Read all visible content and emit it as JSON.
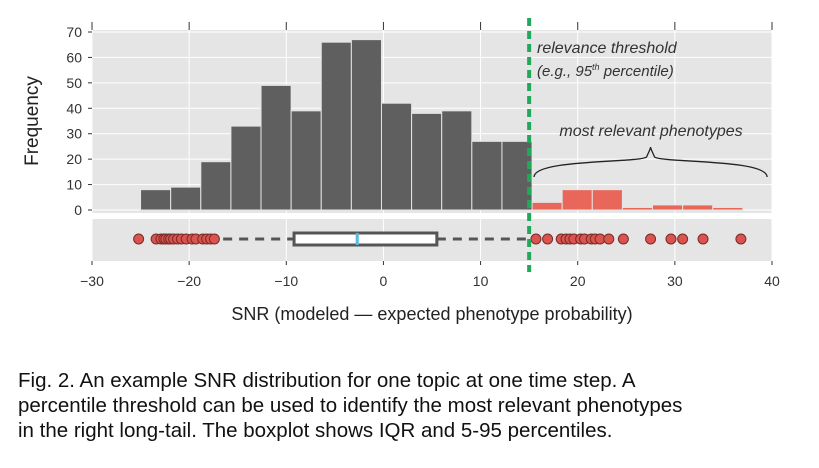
{
  "chart_data": {
    "type": "histogram+boxplot",
    "x_axis": {
      "label": "SNR (modeled — expected phenotype probability)",
      "ticks": [
        -30,
        -20,
        -10,
        0,
        10,
        20,
        30,
        40
      ],
      "tick_labels": [
        "−30",
        "−20",
        "−10",
        "0",
        "10",
        "20",
        "30",
        "40"
      ],
      "range": [
        -30,
        40
      ]
    },
    "histogram": {
      "ylabel": "Frequency",
      "yticks": [
        0,
        10,
        20,
        30,
        40,
        50,
        60,
        70
      ],
      "yrange": [
        0,
        70
      ],
      "bin_width": 3.1,
      "grid": true,
      "bins_below_threshold": [
        {
          "x0": -25.0,
          "height": 8
        },
        {
          "x0": -21.9,
          "height": 9
        },
        {
          "x0": -18.8,
          "height": 19
        },
        {
          "x0": -15.7,
          "height": 33
        },
        {
          "x0": -12.6,
          "height": 49
        },
        {
          "x0": -9.5,
          "height": 39
        },
        {
          "x0": -6.4,
          "height": 66
        },
        {
          "x0": -3.3,
          "height": 67
        },
        {
          "x0": -0.2,
          "height": 42
        },
        {
          "x0": 2.9,
          "height": 38
        },
        {
          "x0": 6.0,
          "height": 39
        },
        {
          "x0": 9.1,
          "height": 27
        },
        {
          "x0": 12.2,
          "height": 27
        }
      ],
      "bins_above_threshold": [
        {
          "x0": 15.3,
          "height": 3
        },
        {
          "x0": 18.4,
          "height": 8
        },
        {
          "x0": 21.5,
          "height": 8
        },
        {
          "x0": 24.6,
          "height": 1
        },
        {
          "x0": 27.7,
          "height": 2
        },
        {
          "x0": 30.8,
          "height": 2
        },
        {
          "x0": 33.9,
          "height": 1
        }
      ],
      "colors": {
        "below": "#5f5f5f",
        "above": "#e8675a"
      }
    },
    "boxplot": {
      "whisker_low": -16.5,
      "q1": -9.2,
      "median": -2.7,
      "q3": 5.5,
      "whisker_high": 14.8,
      "box_color": "#555555",
      "median_color": "#5bb6e3",
      "outliers_low": [
        -25.2,
        -23.4,
        -22.9,
        -22.6,
        -22.4,
        -22.1,
        -21.9,
        -21.6,
        -21.2,
        -20.8,
        -20.3,
        -19.7,
        -19.3,
        -18.6,
        -18.2,
        -17.8,
        -17.4
      ],
      "outliers_high": [
        15.7,
        16.9,
        18.3,
        18.8,
        19.2,
        19.6,
        20.3,
        20.7,
        21.4,
        21.8,
        22.3,
        23.2,
        24.7,
        27.5,
        29.6,
        30.8,
        32.9,
        36.8
      ],
      "outlier_color": "#d9534f"
    },
    "threshold": {
      "x": 15.0,
      "color": "#22a85a",
      "label_line1": "relevance threshold",
      "label_line2_pre": "(e.g., 95",
      "label_line2_sup": "th",
      "label_line2_post": " percentile)"
    },
    "annotation": {
      "text": "most relevant phenotypes",
      "brace_from": 15.5,
      "brace_to": 39.5
    }
  },
  "caption": {
    "line1": "Fig. 2.  An example SNR distribution for one topic at one time step.  A",
    "line2": "percentile threshold can be used to identify the most relevant phenotypes",
    "line3": "in the right long-tail. The boxplot shows IQR and 5-95 percentiles."
  }
}
